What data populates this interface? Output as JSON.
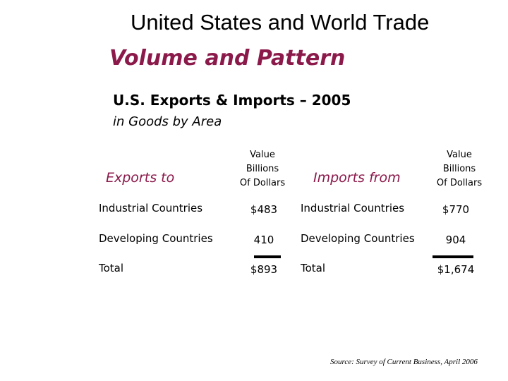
{
  "header": {
    "title": "United States and World Trade",
    "subtitle": "Volume and Pattern",
    "heading": "U.S. Exports & Imports – 2005",
    "subheading": "in Goods by Area"
  },
  "table": {
    "columns": [
      "Exports to",
      [
        "Value",
        "Billions",
        "Of Dollars"
      ],
      "Imports from",
      [
        "Value",
        "Billions",
        "Of Dollars"
      ]
    ],
    "rows": [
      [
        "Industrial Countries",
        "$483",
        "Industrial Countries",
        "$770"
      ],
      [
        "Developing Countries",
        "410",
        "Developing Countries",
        "904"
      ],
      [
        "Total",
        "$893",
        "Total",
        "$1,674"
      ]
    ]
  },
  "source": "Source: Survey of Current Business, April 2006"
}
